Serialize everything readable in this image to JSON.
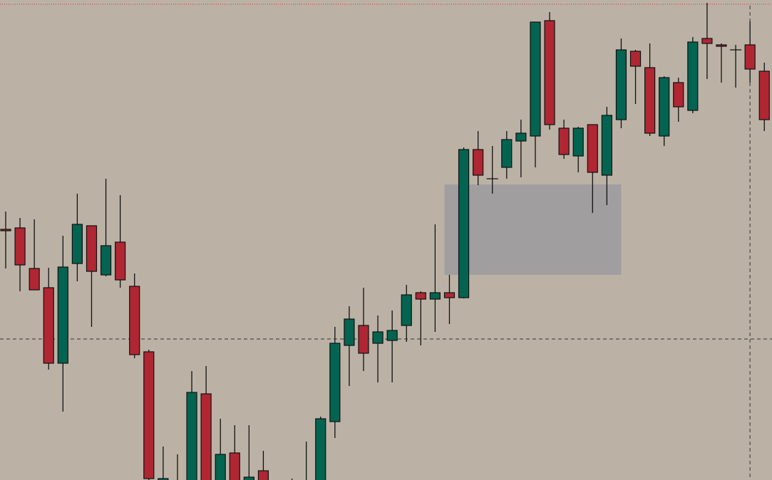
{
  "chart_data": {
    "type": "candlestick",
    "title": "",
    "xlabel": "",
    "ylabel": "",
    "ylim": [
      2.6,
      70
    ],
    "grid": false,
    "legend": "none",
    "colors": {
      "background": "#bbb2a5",
      "bullish": "#036451",
      "bearish": "#b02633",
      "outline": "#111111",
      "zone": "#a09e9f",
      "crosshair": "#333333",
      "top_line": "#d0303a"
    },
    "candles": [
      [
        37.8,
        40.3,
        32.3,
        37.6
      ],
      [
        38.0,
        39.4,
        29.1,
        32.8
      ],
      [
        32.3,
        39.2,
        29.3,
        29.3
      ],
      [
        29.6,
        32.4,
        18.1,
        19.0
      ],
      [
        19.0,
        36.9,
        12.2,
        32.5
      ],
      [
        33.0,
        42.8,
        30.5,
        38.5
      ],
      [
        38.3,
        38.3,
        24.1,
        31.9
      ],
      [
        31.4,
        44.9,
        31.2,
        35.5
      ],
      [
        36.0,
        42.6,
        29.6,
        30.7
      ],
      [
        29.8,
        31.6,
        19.7,
        20.2
      ],
      [
        20.6,
        20.9,
        2.4,
        2.8
      ],
      [
        2.4,
        7.3,
        2.2,
        2.8
      ],
      [
        1.0,
        6.2,
        0,
        2.0
      ],
      [
        1.0,
        17.9,
        0,
        14.9
      ],
      [
        14.7,
        18.6,
        0,
        1.0
      ],
      [
        1.0,
        11.2,
        0,
        6.2
      ],
      [
        6.4,
        10.3,
        0,
        1.0
      ],
      [
        1.0,
        10.3,
        0,
        3.0
      ],
      [
        3.9,
        6.7,
        0,
        1.0
      ],
      [
        1.0,
        1.5,
        0,
        0.5
      ],
      [
        0.5,
        2.8,
        0,
        1.5
      ],
      [
        0.5,
        8.0,
        0,
        2.0
      ],
      [
        1.0,
        11.5,
        0,
        11.2
      ],
      [
        10.8,
        24.1,
        8.5,
        21.8
      ],
      [
        21.5,
        27.0,
        15.8,
        25.2
      ],
      [
        24.3,
        29.6,
        17.9,
        20.4
      ],
      [
        21.8,
        25.7,
        16.3,
        23.4
      ],
      [
        22.2,
        26.4,
        16.3,
        23.6
      ],
      [
        24.3,
        30.0,
        22.0,
        28.6
      ],
      [
        28.9,
        29.1,
        21.5,
        28.0
      ],
      [
        28.0,
        38.5,
        23.4,
        28.9
      ],
      [
        28.9,
        31.4,
        24.5,
        28.2
      ],
      [
        28.2,
        49.3,
        28.1,
        49.0
      ],
      [
        49.0,
        51.6,
        44.0,
        45.4
      ],
      [
        44.9,
        49.5,
        42.8,
        44.9
      ],
      [
        46.5,
        51.6,
        44.9,
        50.4
      ],
      [
        50.2,
        53.2,
        45.1,
        51.3
      ],
      [
        50.9,
        66.9,
        46.5,
        66.9
      ],
      [
        67.1,
        68.3,
        51.8,
        52.5
      ],
      [
        52.0,
        53.2,
        47.7,
        48.3
      ],
      [
        48.1,
        52.2,
        45.8,
        52.0
      ],
      [
        52.5,
        52.5,
        40.1,
        45.8
      ],
      [
        45.4,
        55.0,
        41.2,
        53.8
      ],
      [
        53.2,
        64.6,
        52.0,
        63.0
      ],
      [
        62.8,
        63.0,
        55.4,
        60.7
      ],
      [
        60.5,
        63.9,
        50.9,
        51.3
      ],
      [
        50.9,
        59.3,
        49.5,
        59.1
      ],
      [
        58.4,
        59.1,
        52.9,
        55.0
      ],
      [
        54.5,
        64.8,
        54.1,
        64.1
      ],
      [
        64.6,
        69.6,
        58.9,
        63.9
      ],
      [
        63.7,
        63.9,
        58.4,
        63.5
      ],
      [
        63.0,
        63.7,
        57.7,
        63.0
      ],
      [
        63.7,
        67.0,
        58.4,
        60.3
      ],
      [
        60.0,
        61.2,
        51.6,
        53.2
      ]
    ],
    "candle_fields": [
      "open",
      "high",
      "low",
      "close"
    ],
    "zone": {
      "from_candle": 31,
      "to_candle": 43,
      "price_top": 44.1,
      "price_bottom": 31.4
    },
    "crosshair": {
      "price": 22.4,
      "candle": 52
    },
    "top_dotted_line_price": 69.4
  }
}
